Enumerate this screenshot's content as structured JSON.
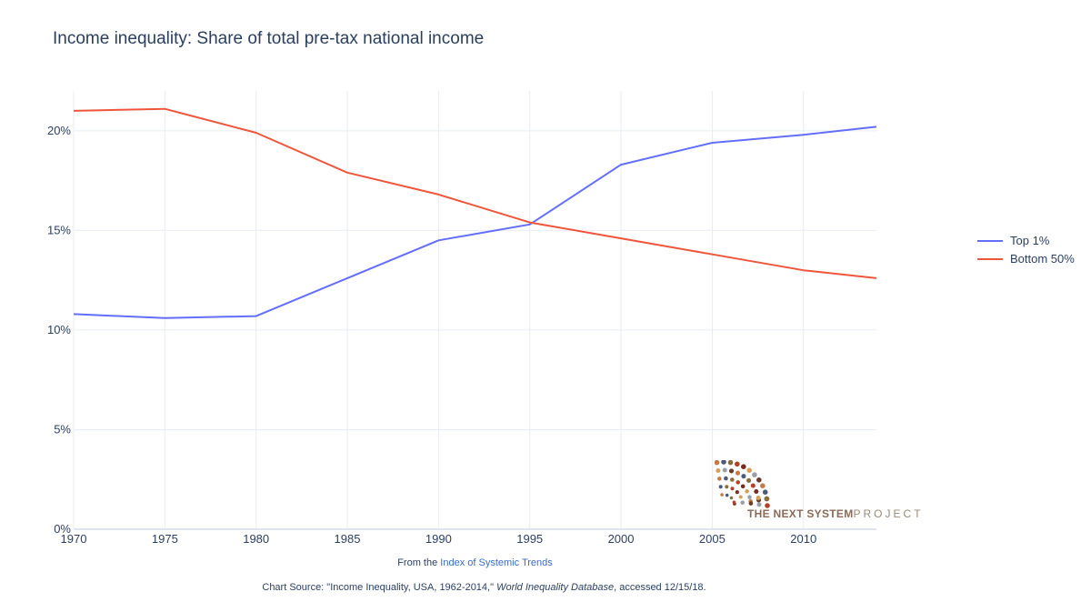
{
  "title": "Income inequality: Share of total pre-tax national income",
  "footer": {
    "from_prefix": "From the ",
    "from_link": "Index of Systemic Trends",
    "source_prefix": "Chart Source: \"Income Inequality, USA, 1962-2014,\" ",
    "source_italic": "World Inequality Database",
    "source_suffix": ", accessed 12/15/18."
  },
  "logo": {
    "word1": "THE NEXT SYSTEM",
    "word2": "PROJECT"
  },
  "colors": {
    "top1": "#636efa",
    "bottom50": "#ef553b",
    "grid": "#e8ecf3",
    "text": "#2a3f5f"
  },
  "chart_data": {
    "type": "line",
    "x": [
      1970,
      1975,
      1980,
      1985,
      1990,
      1995,
      2000,
      2005,
      2010,
      2014
    ],
    "series": [
      {
        "name": "Top 1%",
        "values": [
          10.8,
          10.6,
          10.7,
          12.6,
          14.5,
          15.3,
          18.3,
          19.4,
          19.8,
          20.2
        ]
      },
      {
        "name": "Bottom 50%",
        "values": [
          21.0,
          21.1,
          19.9,
          17.9,
          16.8,
          15.4,
          14.6,
          13.8,
          13.0,
          12.6
        ]
      }
    ],
    "xticks": [
      "1970",
      "1975",
      "1980",
      "1985",
      "1990",
      "1995",
      "2000",
      "2005",
      "2010"
    ],
    "yticks": [
      "0%",
      "5%",
      "10%",
      "15%",
      "20%"
    ],
    "ylim": [
      0,
      22
    ],
    "xlim": [
      1970,
      2014
    ],
    "grid": true,
    "legend_position": "right"
  }
}
